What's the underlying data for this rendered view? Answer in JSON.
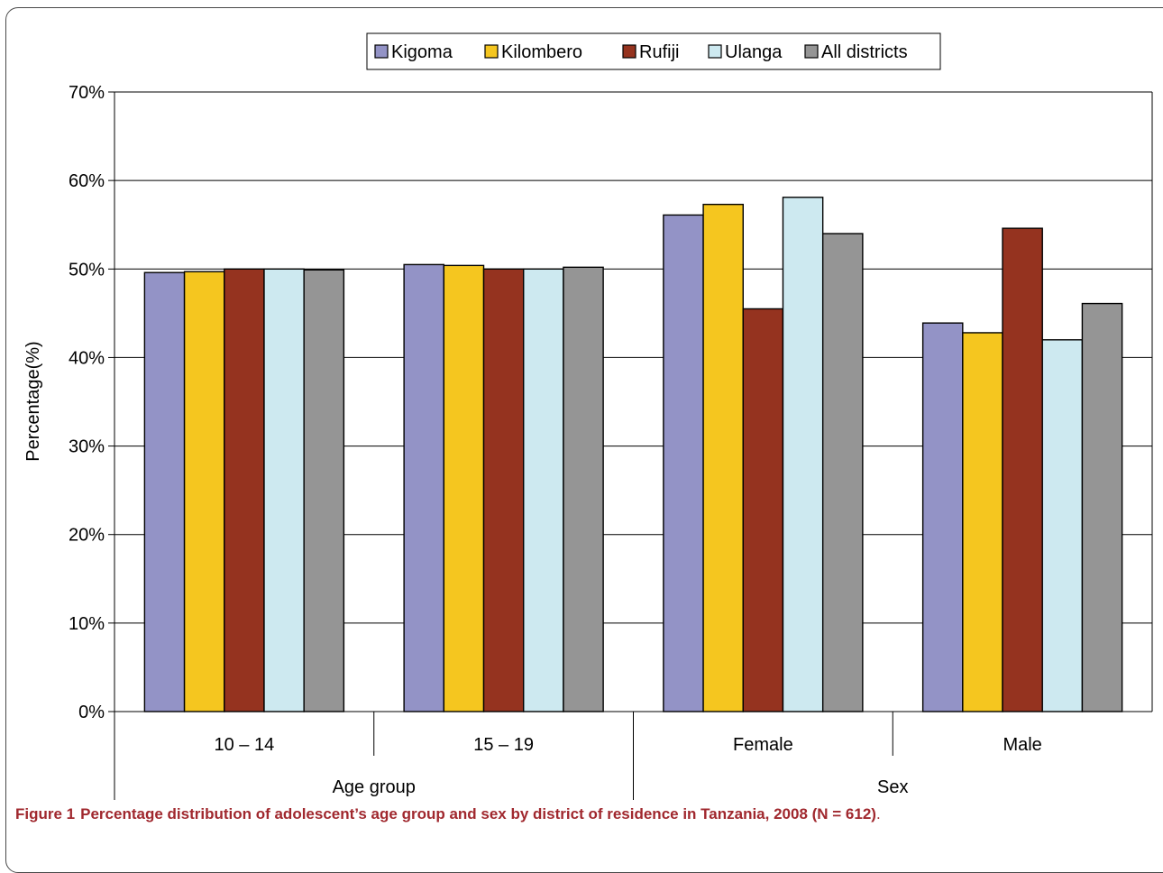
{
  "chart_data": {
    "type": "bar",
    "ylabel": "Percentage(%)",
    "ylim": [
      0,
      70
    ],
    "yticks": [
      "0%",
      "10%",
      "20%",
      "30%",
      "40%",
      "50%",
      "60%",
      "70%"
    ],
    "grid": true,
    "legend_position": "top",
    "categories": [
      "10 – 14",
      "15 – 19",
      "Female",
      "Male"
    ],
    "groups": [
      {
        "label": "Age group",
        "categories": [
          "10 – 14",
          "15 – 19"
        ]
      },
      {
        "label": "Sex",
        "categories": [
          "Female",
          "Male"
        ]
      }
    ],
    "series": [
      {
        "name": "Kigoma",
        "color": "#9393c6",
        "values": [
          49.6,
          50.5,
          56.1,
          43.9
        ]
      },
      {
        "name": "Kilombero",
        "color": "#f5c61f",
        "values": [
          49.7,
          50.4,
          57.3,
          42.8
        ]
      },
      {
        "name": "Rufiji",
        "color": "#95331f",
        "values": [
          50.0,
          50.0,
          45.5,
          54.6
        ]
      },
      {
        "name": "Ulanga",
        "color": "#cde9f0",
        "values": [
          50.0,
          50.0,
          58.1,
          42.0
        ]
      },
      {
        "name": "All districts",
        "color": "#959595",
        "values": [
          49.9,
          50.2,
          54.0,
          46.1
        ]
      }
    ]
  },
  "caption": {
    "number": "Figure 1",
    "text": "Percentage distribution of adolescent’s age group and sex by district of residence in Tanzania, 2008 (N = 612)",
    "end": "."
  }
}
